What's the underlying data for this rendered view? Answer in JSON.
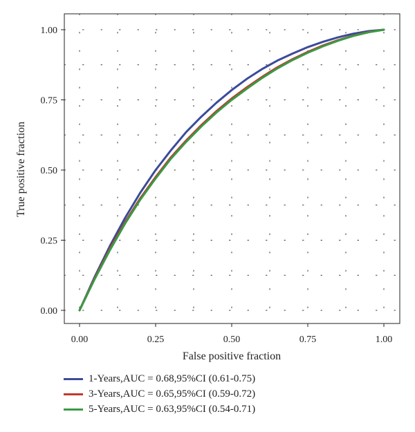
{
  "chart_data": {
    "type": "line",
    "xlabel": "False positive fraction",
    "ylabel": "True positive fraction",
    "xlim": [
      0,
      1
    ],
    "ylim": [
      0,
      1
    ],
    "x_ticks": [
      "0.00",
      "0.25",
      "0.50",
      "0.75",
      "1.00"
    ],
    "y_ticks": [
      "0.00",
      "0.25",
      "0.50",
      "0.75",
      "1.00"
    ],
    "grid": "dotted",
    "legend_position": "bottom",
    "series": [
      {
        "name": "1-Years,AUC = 0.68,95%CI (0.61-0.75)",
        "color": "#3a4b9a",
        "x": [
          0,
          0.05,
          0.1,
          0.15,
          0.2,
          0.25,
          0.3,
          0.35,
          0.4,
          0.45,
          0.5,
          0.55,
          0.6,
          0.65,
          0.7,
          0.75,
          0.8,
          0.85,
          0.9,
          0.95,
          1.0
        ],
        "y": [
          0,
          0.12,
          0.23,
          0.33,
          0.42,
          0.5,
          0.57,
          0.635,
          0.69,
          0.74,
          0.785,
          0.825,
          0.86,
          0.89,
          0.915,
          0.938,
          0.957,
          0.973,
          0.986,
          0.995,
          1.0
        ]
      },
      {
        "name": "3-Years,AUC = 0.65,95%CI (0.59-0.72)",
        "color": "#c0392b",
        "x": [
          0,
          0.05,
          0.1,
          0.15,
          0.2,
          0.25,
          0.3,
          0.35,
          0.4,
          0.45,
          0.5,
          0.55,
          0.6,
          0.65,
          0.7,
          0.75,
          0.8,
          0.85,
          0.9,
          0.95,
          1.0
        ],
        "y": [
          0,
          0.115,
          0.22,
          0.315,
          0.4,
          0.475,
          0.545,
          0.605,
          0.66,
          0.71,
          0.755,
          0.795,
          0.832,
          0.866,
          0.895,
          0.921,
          0.944,
          0.963,
          0.979,
          0.992,
          1.0
        ]
      },
      {
        "name": "5-Years,AUC = 0.63,95%CI (0.54-0.71)",
        "color": "#3a9a44",
        "x": [
          0,
          0.05,
          0.1,
          0.15,
          0.2,
          0.25,
          0.3,
          0.35,
          0.4,
          0.45,
          0.5,
          0.55,
          0.6,
          0.65,
          0.7,
          0.75,
          0.8,
          0.85,
          0.9,
          0.95,
          1.0
        ],
        "y": [
          0,
          0.112,
          0.215,
          0.31,
          0.395,
          0.47,
          0.54,
          0.6,
          0.655,
          0.705,
          0.75,
          0.79,
          0.828,
          0.862,
          0.892,
          0.918,
          0.941,
          0.961,
          0.978,
          0.991,
          1.0
        ]
      }
    ]
  }
}
